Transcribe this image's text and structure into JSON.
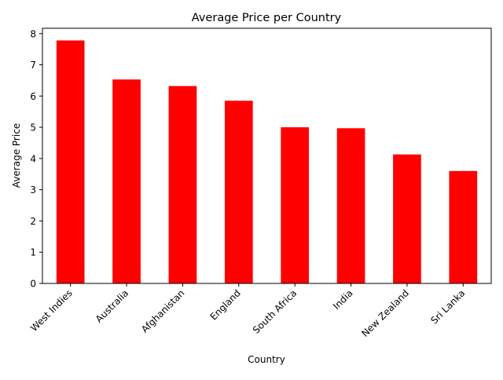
{
  "chart_data": {
    "type": "bar",
    "title": "Average Price per Country",
    "xlabel": "Country",
    "ylabel": "Average Price",
    "categories": [
      "West Indies",
      "Australia",
      "Afghanistan",
      "England",
      "South Africa",
      "India",
      "New Zealand",
      "Sri Lanka"
    ],
    "values": [
      7.78,
      6.53,
      6.32,
      5.85,
      5.0,
      4.97,
      4.13,
      3.6
    ],
    "ylim": [
      0,
      8.17
    ],
    "yticks": [
      0,
      1,
      2,
      3,
      4,
      5,
      6,
      7,
      8
    ],
    "bar_color": "#ff0000",
    "grid": false,
    "legend": "none"
  }
}
